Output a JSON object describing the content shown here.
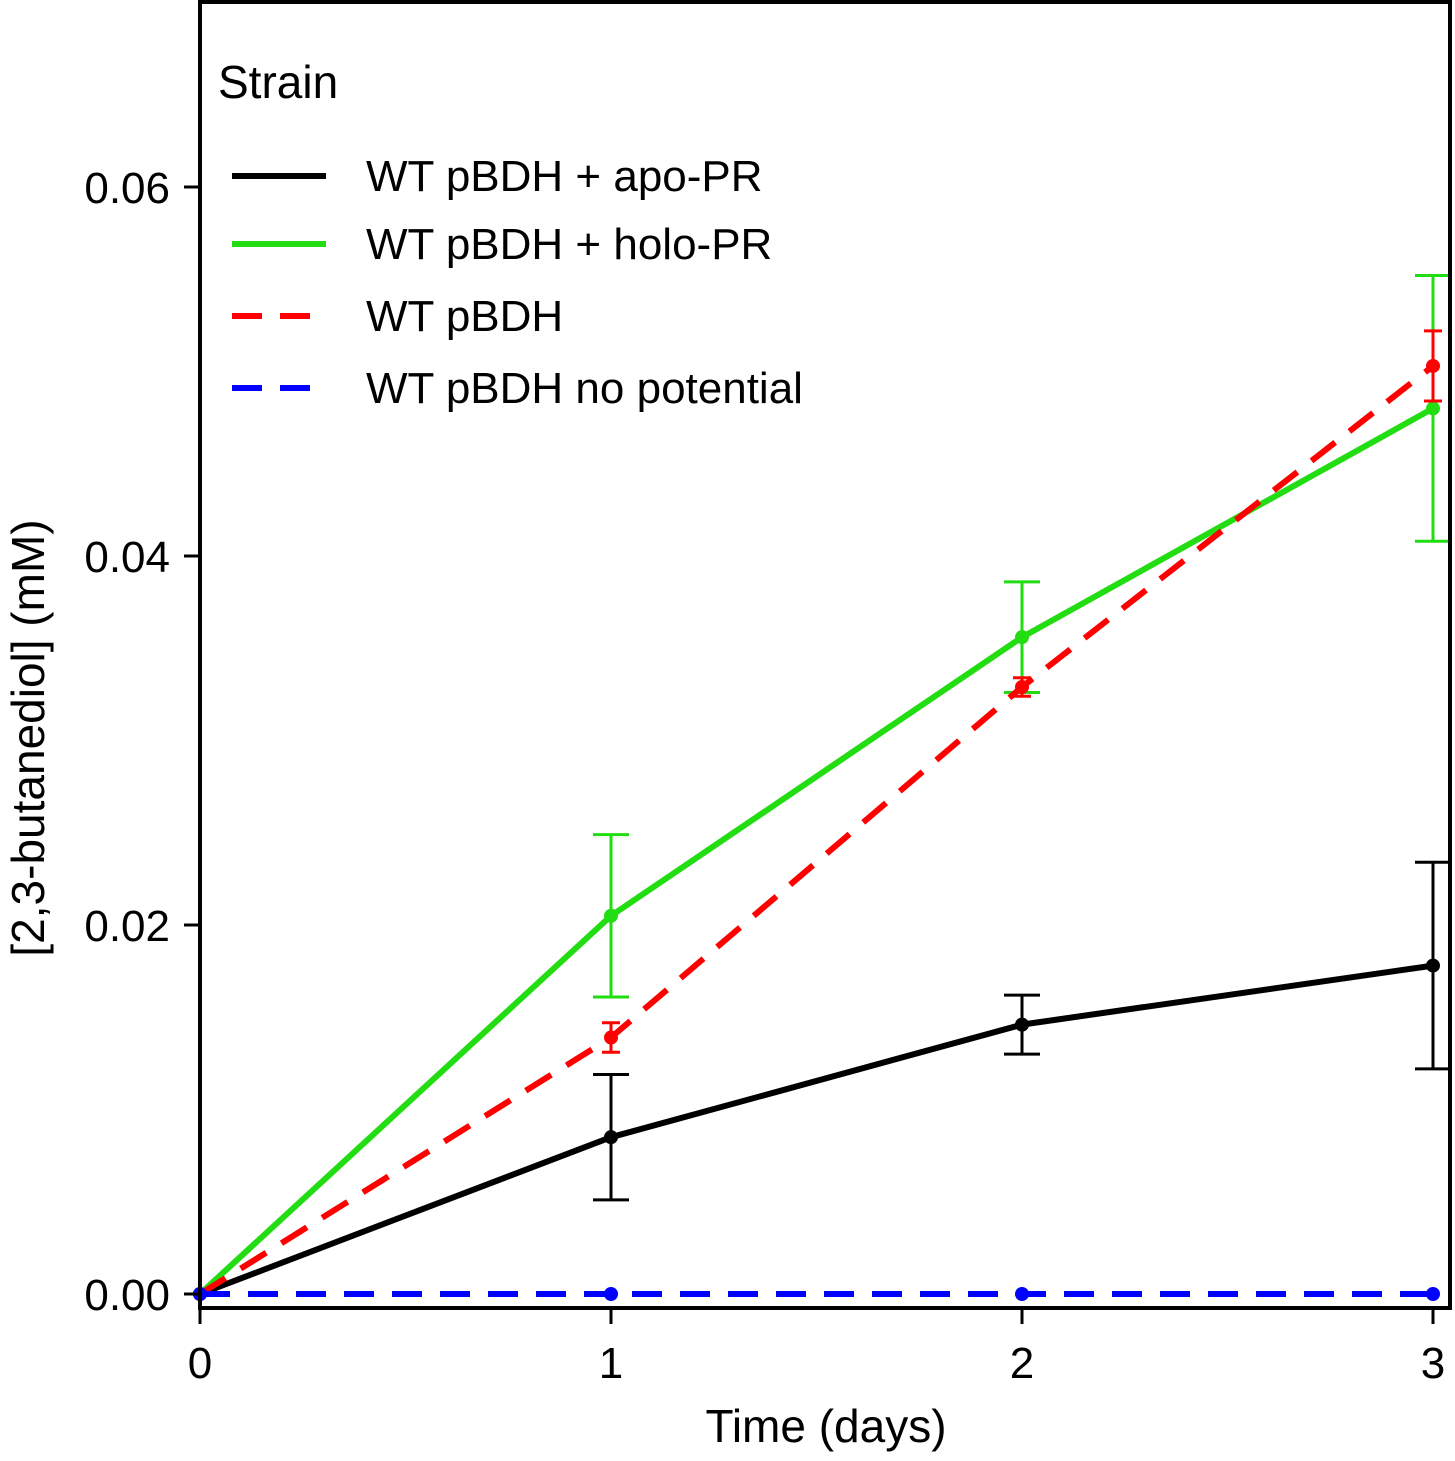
{
  "chart_data": {
    "type": "line",
    "title": "",
    "xlabel": "Time (days)",
    "ylabel": "[2,3-butanediol] (mM)",
    "xlim": [
      0,
      3
    ],
    "ylim": [
      0,
      0.07
    ],
    "x_ticks": [
      0,
      1,
      2,
      3
    ],
    "x_tick_labels": [
      "0",
      "1",
      "2",
      "3"
    ],
    "y_ticks": [
      0,
      0.02,
      0.04,
      0.06
    ],
    "y_tick_labels": [
      "0.00",
      "0.02",
      "0.04",
      "0.06"
    ],
    "grid": false,
    "legend": {
      "title": "Strain",
      "placement": "top-left"
    },
    "series": [
      {
        "name": "WT pBDH + apo-PR",
        "color": "#000000",
        "dashed": false,
        "x": [
          0,
          1,
          2,
          3
        ],
        "y": [
          0,
          0.0085,
          0.0146,
          0.0178
        ],
        "error": [
          0,
          0.0034,
          0.0016,
          0.0056
        ]
      },
      {
        "name": "WT pBDH + holo-PR",
        "color": "#22dd11",
        "dashed": false,
        "x": [
          0,
          1,
          2,
          3
        ],
        "y": [
          0,
          0.0205,
          0.0356,
          0.048
        ],
        "error": [
          0,
          0.0044,
          0.003,
          0.0072
        ]
      },
      {
        "name": "WT pBDH",
        "color": "#ff0000",
        "dashed": true,
        "x": [
          0,
          1,
          2,
          3
        ],
        "y": [
          0,
          0.0139,
          0.0329,
          0.0503
        ],
        "error": [
          0,
          0.0008,
          0.0005,
          0.0019
        ]
      },
      {
        "name": "WT pBDH no potential",
        "color": "#0000ff",
        "dashed": true,
        "x": [
          0,
          1,
          2,
          3
        ],
        "y": [
          0,
          0,
          0,
          0
        ],
        "error": [
          0,
          0,
          0,
          0
        ]
      }
    ]
  }
}
